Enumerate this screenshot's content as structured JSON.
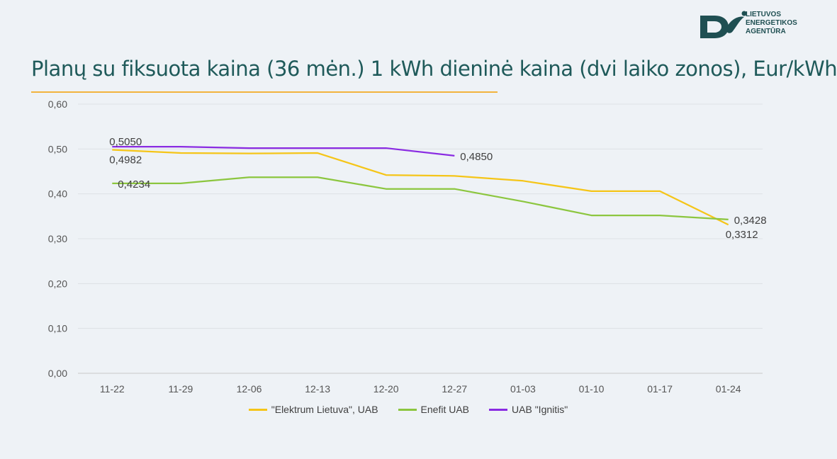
{
  "title": "Planų su fiksuota kaina (36 mėn.) 1 kWh dieninė kaina (dvi laiko zonos), Eur/kWh",
  "logo": {
    "icon": "leaf-logo-icon",
    "lines": [
      "LIETUVOS",
      "ENERGETIKOS",
      "AGENTŪRA"
    ],
    "color": "#1f4f52"
  },
  "chart_data": {
    "type": "line",
    "categories": [
      "11-22",
      "11-29",
      "12-06",
      "12-13",
      "12-20",
      "12-27",
      "01-03",
      "01-10",
      "01-17",
      "01-24"
    ],
    "ylim": [
      0,
      0.6
    ],
    "yticks": [
      "0,00",
      "0,10",
      "0,20",
      "0,30",
      "0,40",
      "0,50",
      "0,60"
    ],
    "grid": true,
    "legend_position": "bottom",
    "series": [
      {
        "name": "\"Elektrum Lietuva\", UAB",
        "color": "#f5c518",
        "values": [
          0.4982,
          0.491,
          0.49,
          0.491,
          0.442,
          0.44,
          0.429,
          0.406,
          0.406,
          0.3312
        ],
        "labels": [
          {
            "index": 0,
            "text": "0,4982",
            "pos": "below"
          },
          {
            "index": 9,
            "text": "0,3312",
            "pos": "below"
          }
        ]
      },
      {
        "name": "Enefit UAB",
        "color": "#8cc63f",
        "values": [
          0.4234,
          0.4234,
          0.437,
          0.437,
          0.411,
          0.411,
          0.383,
          0.352,
          0.352,
          0.3428
        ],
        "labels": [
          {
            "index": 0,
            "text": "0,4234",
            "pos": "right"
          },
          {
            "index": 9,
            "text": "0,3428",
            "pos": "right"
          }
        ]
      },
      {
        "name": "UAB \"Ignitis\"",
        "color": "#8a2be2",
        "values": [
          0.505,
          0.505,
          0.502,
          0.502,
          0.502,
          0.485,
          null,
          null,
          null,
          null
        ],
        "labels": [
          {
            "index": 0,
            "text": "0,5050",
            "pos": "above"
          },
          {
            "index": 5,
            "text": "0,4850",
            "pos": "right"
          }
        ]
      }
    ]
  }
}
